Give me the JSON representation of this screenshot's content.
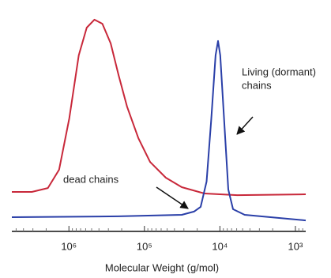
{
  "chart_data": {
    "type": "line",
    "xlabel": "Molecular Weight (g/mol)",
    "xscale": "log",
    "xlim": [
      5700000,
      730
    ],
    "ylim": [
      0,
      100
    ],
    "xticks": [
      {
        "value": 1000000,
        "label": "10⁶"
      },
      {
        "value": 100000,
        "label": "10⁵"
      },
      {
        "value": 10000,
        "label": "10⁴"
      },
      {
        "value": 1000,
        "label": "10³"
      }
    ],
    "xminorticks": [
      5000000,
      4000000,
      3000000,
      2000000,
      900000,
      800000,
      700000,
      600000,
      500000,
      400000,
      300000,
      200000,
      90000,
      80000,
      70000,
      60000,
      50000,
      40000,
      30000,
      20000,
      9000,
      8000,
      7000,
      6000,
      5000,
      4000,
      3000,
      2000,
      900,
      800
    ],
    "annotations": [
      "Living (dormant)",
      "chains",
      "dead chains"
    ],
    "series": [
      {
        "name": "dead chains",
        "color": "#c8283a",
        "x": [
          5700000,
          3100000,
          1900000,
          1350000,
          990000,
          740000,
          580000,
          460000,
          360000,
          280000,
          220000,
          170000,
          120000,
          84000,
          52000,
          32000,
          16000,
          5900,
          730
        ],
        "values": [
          18.3,
          18.3,
          20.1,
          28.6,
          52.4,
          81.7,
          94.5,
          98.2,
          96.3,
          87.2,
          72.5,
          57.9,
          43.2,
          32.2,
          24.9,
          20.5,
          17.6,
          16.8,
          17.2
        ]
      },
      {
        "name": "Living (dormant) chains",
        "color": "#2a3fa8",
        "x": [
          5700000,
          220000,
          32000,
          22000,
          18000,
          15000,
          13000,
          11400,
          10600,
          9900,
          8700,
          7750,
          6700,
          4700,
          730
        ],
        "values": [
          6.6,
          7.0,
          7.7,
          9.2,
          11.4,
          23.1,
          52.4,
          81.7,
          88.3,
          81.7,
          48.7,
          19.4,
          10.3,
          7.7,
          5.1
        ]
      }
    ]
  }
}
